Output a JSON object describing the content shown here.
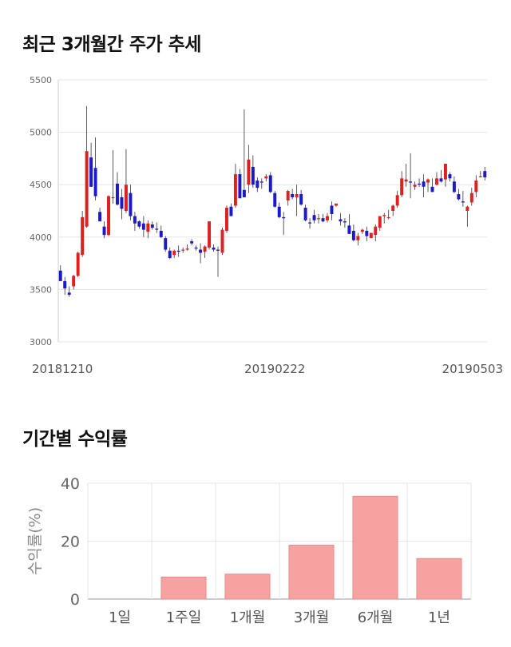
{
  "sections": {
    "price_trend_title": "최근 3개월간 주가 추세",
    "returns_title": "기간별 수익률"
  },
  "colors": {
    "up": "#e02020",
    "down": "#1a1acc",
    "wick": "#333333",
    "bar": "#f7a1a1",
    "bar_stroke": "#e08a8a",
    "grid": "#e6e6e6"
  },
  "chart_data": [
    {
      "type": "candlestick",
      "title": "최근 3개월간 주가 추세",
      "ylim": [
        3000,
        5500
      ],
      "yticks": [
        3000,
        3500,
        4000,
        4500,
        5000,
        5500
      ],
      "xtick_labels": [
        {
          "label": "20181210",
          "index": 0
        },
        {
          "label": "20190222",
          "index": 49
        },
        {
          "label": "20190503",
          "index": 99
        }
      ],
      "grid": true,
      "candles": [
        [
          3680,
          3730,
          3580,
          3580
        ],
        [
          3580,
          3620,
          3450,
          3510
        ],
        [
          3470,
          3530,
          3430,
          3450
        ],
        [
          3530,
          3640,
          3500,
          3630
        ],
        [
          3630,
          3860,
          3620,
          3850
        ],
        [
          3830,
          4250,
          3810,
          4190
        ],
        [
          4100,
          5250,
          4090,
          4820
        ],
        [
          4760,
          4900,
          4480,
          4480
        ],
        [
          4660,
          4950,
          4350,
          4390
        ],
        [
          4240,
          4280,
          4150,
          4150
        ],
        [
          4100,
          4150,
          3990,
          4020
        ],
        [
          4020,
          4400,
          4010,
          4390
        ],
        [
          4380,
          4830,
          4320,
          4380
        ],
        [
          4510,
          4620,
          4300,
          4310
        ],
        [
          4380,
          4460,
          4170,
          4270
        ],
        [
          4250,
          4840,
          4230,
          4500
        ],
        [
          4420,
          4500,
          4160,
          4200
        ],
        [
          4200,
          4240,
          4060,
          4130
        ],
        [
          4150,
          4160,
          4080,
          4100
        ],
        [
          4130,
          4200,
          4000,
          4070
        ],
        [
          4050,
          4160,
          3990,
          4130
        ],
        [
          4120,
          4150,
          4070,
          4090
        ],
        [
          4080,
          4140,
          4040,
          4070
        ],
        [
          4060,
          4110,
          3990,
          4000
        ],
        [
          3990,
          4010,
          3860,
          3880
        ],
        [
          3870,
          3900,
          3790,
          3800
        ],
        [
          3830,
          3880,
          3800,
          3870
        ],
        [
          3870,
          3920,
          3810,
          3860
        ],
        [
          3880,
          3900,
          3850,
          3880
        ],
        [
          3880,
          3930,
          3870,
          3890
        ],
        [
          3960,
          3980,
          3920,
          3940
        ],
        [
          3900,
          3920,
          3870,
          3890
        ],
        [
          3880,
          3940,
          3750,
          3850
        ],
        [
          3860,
          3920,
          3800,
          3910
        ],
        [
          3900,
          4150,
          3880,
          4150
        ],
        [
          3900,
          3930,
          3860,
          3880
        ],
        [
          3880,
          3910,
          3620,
          3870
        ],
        [
          3850,
          4090,
          3830,
          4070
        ],
        [
          4060,
          4300,
          4040,
          4280
        ],
        [
          4290,
          4320,
          4200,
          4200
        ],
        [
          4300,
          4700,
          4280,
          4600
        ],
        [
          4600,
          4650,
          4370,
          4370
        ],
        [
          4450,
          5220,
          4380,
          4380
        ],
        [
          4500,
          4880,
          4420,
          4740
        ],
        [
          4670,
          4780,
          4470,
          4500
        ],
        [
          4540,
          4570,
          4430,
          4470
        ],
        [
          4530,
          4560,
          4460,
          4520
        ],
        [
          4560,
          4600,
          4530,
          4580
        ],
        [
          4590,
          4620,
          4420,
          4430
        ],
        [
          4420,
          4440,
          4280,
          4290
        ],
        [
          4290,
          4330,
          4180,
          4190
        ],
        [
          4190,
          4240,
          4020,
          4180
        ],
        [
          4350,
          4450,
          4300,
          4440
        ],
        [
          4410,
          4460,
          4360,
          4380
        ],
        [
          4380,
          4500,
          4200,
          4410
        ],
        [
          4410,
          4450,
          4300,
          4310
        ],
        [
          4280,
          4310,
          4150,
          4160
        ],
        [
          4140,
          4180,
          4080,
          4130
        ],
        [
          4210,
          4260,
          4130,
          4160
        ],
        [
          4180,
          4220,
          4130,
          4180
        ],
        [
          4180,
          4220,
          4140,
          4150
        ],
        [
          4160,
          4230,
          4140,
          4200
        ],
        [
          4300,
          4340,
          4160,
          4220
        ],
        [
          4300,
          4320,
          4290,
          4320
        ],
        [
          4170,
          4230,
          4110,
          4150
        ],
        [
          4150,
          4180,
          4090,
          4140
        ],
        [
          4110,
          4220,
          4030,
          4030
        ],
        [
          4060,
          4120,
          3960,
          3970
        ],
        [
          3970,
          4040,
          3920,
          4010
        ],
        [
          4050,
          4080,
          4030,
          4070
        ],
        [
          4060,
          4100,
          3960,
          4010
        ],
        [
          3990,
          4040,
          3990,
          4040
        ],
        [
          4020,
          4120,
          3960,
          4100
        ],
        [
          4090,
          4200,
          4060,
          4200
        ],
        [
          4200,
          4230,
          4130,
          4210
        ],
        [
          4190,
          4260,
          4170,
          4190
        ],
        [
          4250,
          4310,
          4200,
          4300
        ],
        [
          4300,
          4440,
          4280,
          4400
        ],
        [
          4400,
          4630,
          4380,
          4560
        ],
        [
          4530,
          4700,
          4480,
          4550
        ],
        [
          4530,
          4800,
          4370,
          4520
        ],
        [
          4480,
          4530,
          4450,
          4500
        ],
        [
          4510,
          4560,
          4480,
          4500
        ],
        [
          4530,
          4600,
          4380,
          4480
        ],
        [
          4520,
          4560,
          4430,
          4550
        ],
        [
          4480,
          4560,
          4430,
          4430
        ],
        [
          4500,
          4620,
          4490,
          4560
        ],
        [
          4560,
          4640,
          4520,
          4530
        ],
        [
          4550,
          4700,
          4480,
          4700
        ],
        [
          4600,
          4620,
          4530,
          4560
        ],
        [
          4530,
          4580,
          4420,
          4430
        ],
        [
          4410,
          4460,
          4350,
          4360
        ],
        [
          4340,
          4440,
          4290,
          4330
        ],
        [
          4250,
          4300,
          4100,
          4290
        ],
        [
          4330,
          4470,
          4300,
          4420
        ],
        [
          4430,
          4590,
          4380,
          4540
        ],
        [
          4580,
          4630,
          4570,
          4580
        ],
        [
          4630,
          4670,
          4540,
          4570
        ]
      ]
    },
    {
      "type": "bar",
      "title": "기간별 수익률",
      "categories": [
        "1일",
        "1주일",
        "1개월",
        "3개월",
        "6개월",
        "1년"
      ],
      "values": [
        0,
        7.6,
        8.6,
        18.6,
        35.5,
        14.0
      ],
      "ylabel": "수익률(%)",
      "ylim": [
        0,
        40
      ],
      "yticks": [
        0,
        20,
        40
      ],
      "grid": true
    }
  ]
}
